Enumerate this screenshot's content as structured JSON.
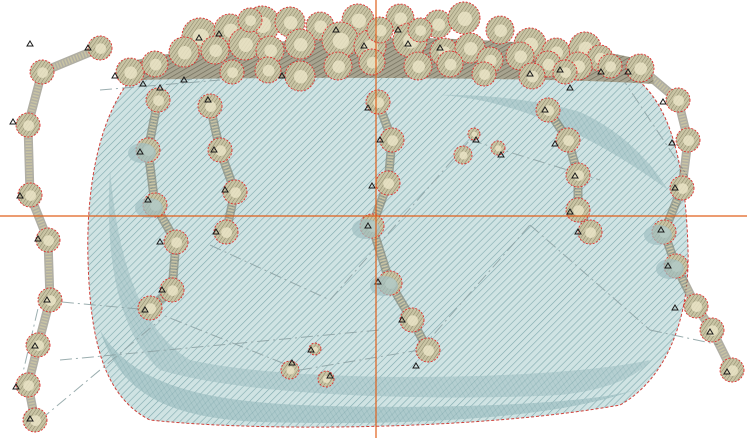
{
  "view": {
    "background": "#ffffff",
    "crosshair_color": "#e0601c"
  },
  "design": {
    "body_fill": "#cfe3e3",
    "body_hatch": "#7fa9ad",
    "body_shadow": "#9fbfc2",
    "body_outline": "#d0403a",
    "rim_fill": "#a7a38f",
    "rim_hatch": "#6f6b58",
    "knot_fill": "#c9c4a4",
    "knot_hatch": "#8a8568",
    "knot_outline": "#e03030",
    "knot_center": "#ece6c8",
    "marker_color": "#1a1a1a",
    "guide_color": "#8aa0a2"
  }
}
